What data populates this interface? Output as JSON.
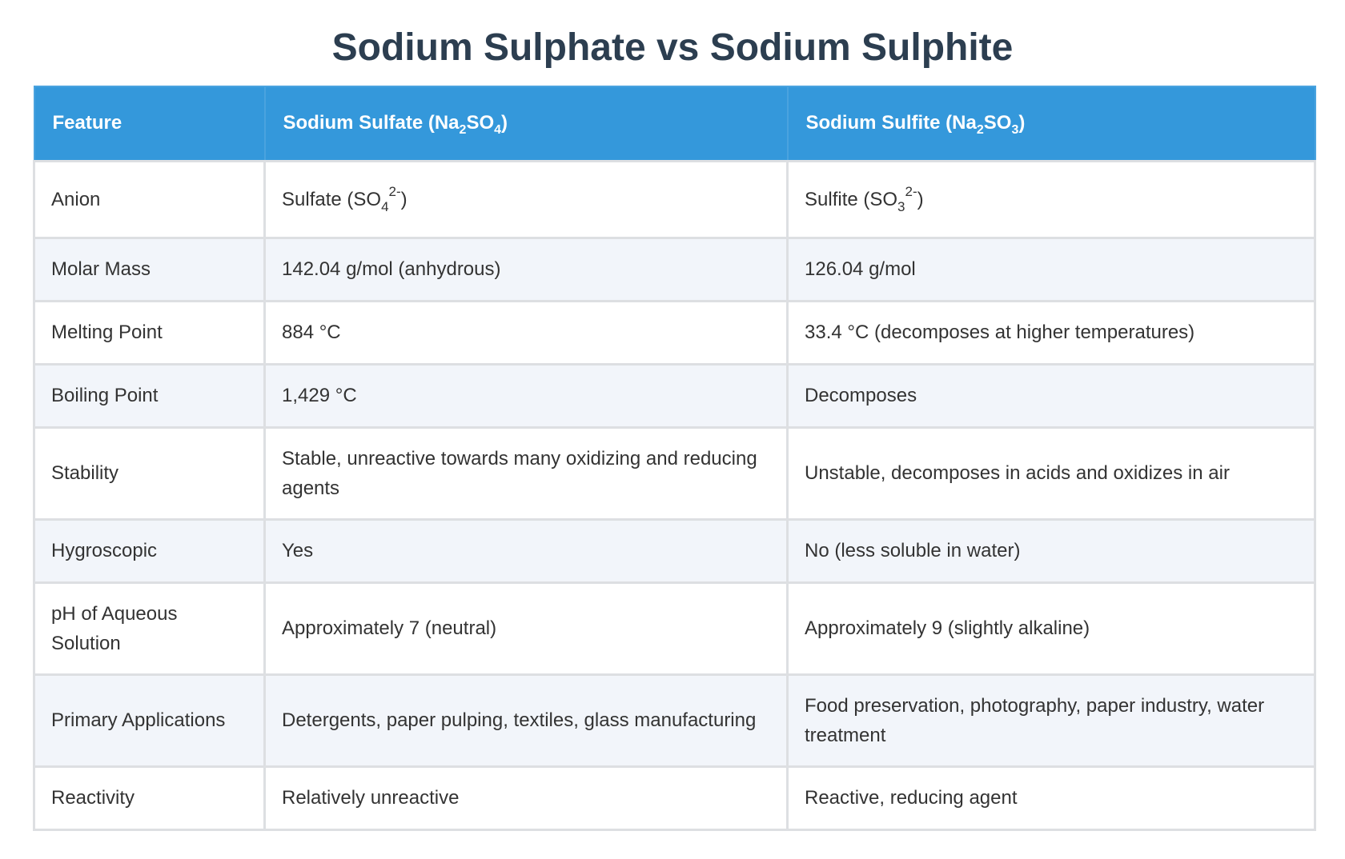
{
  "title": "Sodium Sulphate vs Sodium Sulphite",
  "header": {
    "feature": "Feature",
    "col1": {
      "name": "Sodium Sulfate (Na",
      "sub1": "2",
      "mid": "SO",
      "sub2": "4",
      "end": ")"
    },
    "col2": {
      "name": "Sodium Sulfite (Na",
      "sub1": "2",
      "mid": "SO",
      "sub2": "3",
      "end": ")"
    }
  },
  "rows": {
    "anion": {
      "feature": "Anion",
      "col1": {
        "text": "Sulfate (SO",
        "sub": "4",
        "sup": "2-",
        "end": ")"
      },
      "col2": {
        "text": "Sulfite (SO",
        "sub": "3",
        "sup": "2-",
        "end": ")"
      }
    },
    "molar_mass": {
      "feature": "Molar Mass",
      "col1": "142.04 g/mol (anhydrous)",
      "col2": "126.04 g/mol"
    },
    "melting_point": {
      "feature": "Melting Point",
      "col1": "884 °C",
      "col2": "33.4 °C (decomposes at higher temperatures)"
    },
    "boiling_point": {
      "feature": "Boiling Point",
      "col1": "1,429 °C",
      "col2": "Decomposes"
    },
    "stability": {
      "feature": "Stability",
      "col1": "Stable, unreactive towards many oxidizing and reducing agents",
      "col2": "Unstable, decomposes in acids and oxidizes in air"
    },
    "hygroscopic": {
      "feature": "Hygroscopic",
      "col1": "Yes",
      "col2": "No (less soluble in water)"
    },
    "ph": {
      "feature": "pH of Aqueous Solution",
      "col1": "Approximately 7 (neutral)",
      "col2": "Approximately 9 (slightly alkaline)"
    },
    "applications": {
      "feature": "Primary Applications",
      "col1": "Detergents, paper pulping, textiles, glass manufacturing",
      "col2": "Food preservation, photography, paper industry, water treatment"
    },
    "reactivity": {
      "feature": "Reactivity",
      "col1": "Relatively unreactive",
      "col2": "Reactive, reducing agent"
    }
  },
  "colors": {
    "header_bg": "#3498db",
    "title": "#2c3e50",
    "alt_row": "#f2f5fa"
  }
}
